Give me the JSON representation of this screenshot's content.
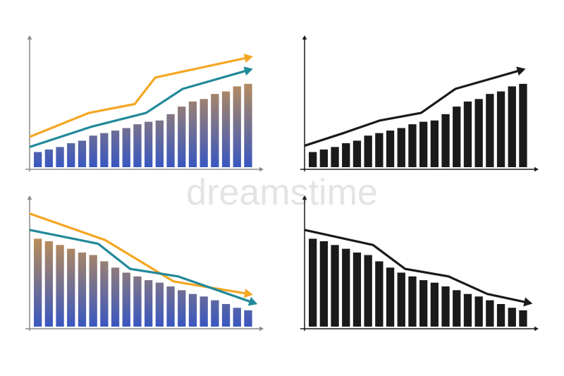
{
  "watermark": "dreamstime",
  "chart_data": [
    {
      "type": "bar",
      "xlim": [
        0,
        100
      ],
      "ylim": [
        0,
        100
      ],
      "axis_color": "#8a8a8a",
      "gradient": [
        "#f2a52c",
        "#3957c0"
      ],
      "values": [
        12,
        14,
        16,
        19,
        21,
        25,
        27,
        29,
        31,
        34,
        36,
        37,
        42,
        48,
        52,
        54,
        58,
        60,
        64,
        66
      ],
      "series": [
        {
          "color": "#f5a623",
          "x": [
            0,
            26,
            46,
            55,
            96
          ],
          "values": [
            24,
            43,
            50,
            71,
            87
          ]
        },
        {
          "color": "#21899a",
          "x": [
            0,
            27,
            51,
            67,
            96
          ],
          "values": [
            16,
            32,
            43,
            62,
            77
          ]
        }
      ]
    },
    {
      "type": "bar",
      "xlim": [
        0,
        100
      ],
      "ylim": [
        0,
        100
      ],
      "axis_color": "#1a1a1a",
      "color": "#1a1a1a",
      "values": [
        12,
        14,
        16,
        19,
        21,
        25,
        27,
        29,
        31,
        34,
        36,
        37,
        42,
        48,
        52,
        54,
        58,
        60,
        64,
        66
      ],
      "series": [
        {
          "color": "#1a1a1a",
          "x": [
            0,
            17,
            33,
            51,
            66,
            95
          ],
          "values": [
            17,
            27,
            37,
            43,
            62,
            77
          ]
        }
      ]
    },
    {
      "type": "bar",
      "xlim": [
        0,
        100
      ],
      "ylim": [
        0,
        100
      ],
      "axis_color": "#8a8a8a",
      "gradient": [
        "#f2a52c",
        "#3957c0"
      ],
      "values": [
        70,
        68,
        65,
        62,
        59,
        57,
        52,
        47,
        43,
        40,
        37,
        35,
        32,
        29,
        26,
        24,
        21,
        18,
        15,
        13
      ],
      "series": [
        {
          "color": "#f5a623",
          "x": [
            0,
            33,
            63,
            96
          ],
          "values": [
            90,
            69,
            36,
            26
          ]
        },
        {
          "color": "#21899a",
          "x": [
            0,
            30,
            44,
            65,
            98
          ],
          "values": [
            77,
            66,
            46,
            40,
            19
          ]
        }
      ]
    },
    {
      "type": "bar",
      "xlim": [
        0,
        100
      ],
      "ylim": [
        0,
        100
      ],
      "axis_color": "#1a1a1a",
      "color": "#1a1a1a",
      "values": [
        70,
        68,
        65,
        62,
        59,
        57,
        52,
        47,
        43,
        40,
        37,
        35,
        32,
        29,
        26,
        24,
        21,
        18,
        15,
        13
      ],
      "series": [
        {
          "color": "#1a1a1a",
          "x": [
            0,
            30,
            44,
            63,
            80,
            98
          ],
          "values": [
            77,
            65,
            46,
            40,
            26,
            19
          ]
        }
      ]
    }
  ]
}
